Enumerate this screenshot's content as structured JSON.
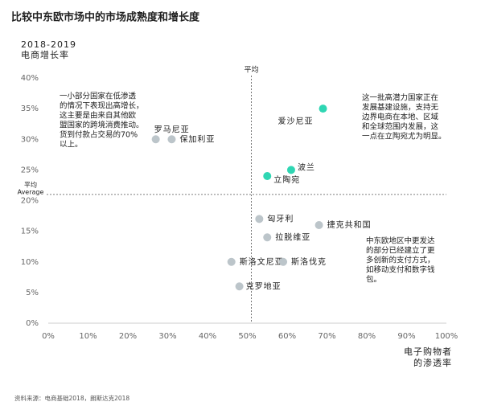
{
  "chart_data": {
    "type": "scatter",
    "title": "比较中东欧市场中的市场成熟度和增长度",
    "y_label_lines": [
      "2018-2019",
      "电商增长率"
    ],
    "x_label_lines": [
      "电子购物者",
      "的渗透率"
    ],
    "xlim": [
      0,
      100
    ],
    "xticks": [
      {
        "value": 0,
        "label": "0%"
      },
      {
        "value": 10,
        "label": "10%"
      },
      {
        "value": 20,
        "label": "20%"
      },
      {
        "value": 30,
        "label": "30%"
      },
      {
        "value": 40,
        "label": "40%"
      },
      {
        "value": 50,
        "label": "50%"
      },
      {
        "value": 60,
        "label": "60%"
      },
      {
        "value": 70,
        "label": "70%"
      },
      {
        "value": 80,
        "label": "80%"
      },
      {
        "value": 90,
        "label": "90%"
      },
      {
        "value": 100,
        "label": "100%"
      }
    ],
    "ylim": [
      0,
      40
    ],
    "yticks": [
      {
        "value": 0,
        "label": "0%"
      },
      {
        "value": 5,
        "label": "5%"
      },
      {
        "value": 10,
        "label": "10%"
      },
      {
        "value": 15,
        "label": "15%"
      },
      {
        "value": 20,
        "label": "20%"
      },
      {
        "value": 25,
        "label": "25%"
      },
      {
        "value": 30,
        "label": "30%"
      },
      {
        "value": 35,
        "label": "35%"
      },
      {
        "value": 40,
        "label": "40%"
      }
    ],
    "average_x": {
      "value": 51,
      "label": "平均"
    },
    "average_y": {
      "value": 21,
      "label_lines": [
        "平均",
        "Average"
      ]
    },
    "points": [
      {
        "name": "爱沙尼亚",
        "x": 69,
        "y": 35,
        "color": "#2fd6b3"
      },
      {
        "name": "波兰",
        "x": 61,
        "y": 25,
        "color": "#2fd6b3"
      },
      {
        "name": "立陶宛",
        "x": 55,
        "y": 24,
        "color": "#2fd6b3"
      },
      {
        "name": "罗马尼亚",
        "x": 27,
        "y": 30,
        "color": "#bcc5ca"
      },
      {
        "name": "保加利亚",
        "x": 31,
        "y": 30,
        "color": "#bcc5ca"
      },
      {
        "name": "匈牙利",
        "x": 53,
        "y": 17,
        "color": "#bcc5ca"
      },
      {
        "name": "捷克共和国",
        "x": 68,
        "y": 16,
        "color": "#bcc5ca"
      },
      {
        "name": "拉脱维亚",
        "x": 55,
        "y": 14,
        "color": "#bcc5ca"
      },
      {
        "name": "斯洛文尼亚",
        "x": 46,
        "y": 10,
        "color": "#bcc5ca"
      },
      {
        "name": "斯洛伐克",
        "x": 59,
        "y": 10,
        "color": "#bcc5ca"
      },
      {
        "name": "克罗地亚",
        "x": 48,
        "y": 6,
        "color": "#bcc5ca"
      }
    ],
    "annotations": [
      {
        "lines": [
          "一小部分国家在低渗透",
          "的情况下表现出高增长，",
          "这主要是由来自其他欧",
          "盟国家的跨境消费推动。",
          "货到付款占交易的70%",
          "以上。"
        ]
      },
      {
        "lines": [
          "这一批高潜力国家正在",
          "发展基建设施，支持无",
          "边界电商在本地、区域",
          "和全球范围内发展，这",
          "一点在立陶宛尤为明显。"
        ]
      },
      {
        "lines": [
          "中东欧地区中更发达",
          "的部分已经建立了更",
          "多创新的支付方式，",
          "如移动支付和数字钱",
          "包。"
        ]
      }
    ],
    "source": "资料来源：电商基础2018，朗斯达克2018"
  }
}
